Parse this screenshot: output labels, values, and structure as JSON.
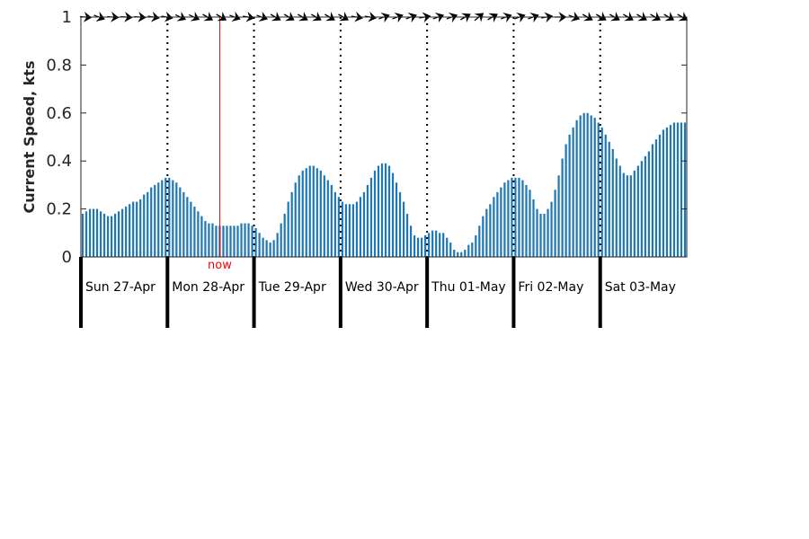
{
  "chart_data": {
    "type": "bar",
    "title": "",
    "xlabel": "",
    "ylabel": "Current Speed, kts",
    "ylim": [
      0,
      1
    ],
    "yticks": [
      0,
      0.2,
      0.4,
      0.6,
      0.8,
      1
    ],
    "ytick_labels": [
      "0",
      "0.2",
      "0.4",
      "0.6",
      "0.8",
      "1"
    ],
    "grid": false,
    "bar_color": "#1f77b4",
    "now_color": "#ff0000",
    "x_start": "2025-04-27T00:00",
    "x_end": "2025-05-04T00:00",
    "bar_interval_hours": 1,
    "days": [
      {
        "date": "2025-04-27",
        "label": "Sun 27-Apr"
      },
      {
        "date": "2025-04-28",
        "label": "Mon 28-Apr"
      },
      {
        "date": "2025-04-29",
        "label": "Tue 29-Apr"
      },
      {
        "date": "2025-04-30",
        "label": "Wed 30-Apr"
      },
      {
        "date": "2025-05-01",
        "label": "Thu 01-May"
      },
      {
        "date": "2025-05-02",
        "label": "Fri 02-May"
      },
      {
        "date": "2025-05-03",
        "label": "Sat 03-May"
      }
    ],
    "now": {
      "time": "2025-04-28T14:30",
      "label": "now"
    },
    "values": [
      0.18,
      0.19,
      0.2,
      0.2,
      0.2,
      0.19,
      0.18,
      0.17,
      0.17,
      0.18,
      0.19,
      0.2,
      0.21,
      0.22,
      0.23,
      0.23,
      0.24,
      0.26,
      0.27,
      0.29,
      0.3,
      0.31,
      0.32,
      0.33,
      0.33,
      0.32,
      0.31,
      0.29,
      0.27,
      0.25,
      0.23,
      0.21,
      0.19,
      0.17,
      0.15,
      0.14,
      0.14,
      0.13,
      0.13,
      0.13,
      0.13,
      0.13,
      0.13,
      0.13,
      0.14,
      0.14,
      0.14,
      0.13,
      0.12,
      0.1,
      0.08,
      0.07,
      0.06,
      0.07,
      0.1,
      0.14,
      0.18,
      0.23,
      0.27,
      0.31,
      0.34,
      0.36,
      0.37,
      0.38,
      0.38,
      0.37,
      0.36,
      0.34,
      0.32,
      0.3,
      0.27,
      0.25,
      0.23,
      0.22,
      0.22,
      0.22,
      0.23,
      0.25,
      0.27,
      0.3,
      0.33,
      0.36,
      0.38,
      0.39,
      0.39,
      0.38,
      0.35,
      0.31,
      0.27,
      0.23,
      0.18,
      0.13,
      0.09,
      0.08,
      0.08,
      0.09,
      0.1,
      0.11,
      0.11,
      0.1,
      0.1,
      0.08,
      0.06,
      0.03,
      0.02,
      0.02,
      0.03,
      0.05,
      0.06,
      0.09,
      0.13,
      0.17,
      0.2,
      0.22,
      0.25,
      0.27,
      0.29,
      0.31,
      0.32,
      0.33,
      0.33,
      0.33,
      0.32,
      0.3,
      0.28,
      0.24,
      0.2,
      0.18,
      0.18,
      0.2,
      0.23,
      0.28,
      0.34,
      0.41,
      0.47,
      0.51,
      0.54,
      0.57,
      0.59,
      0.6,
      0.6,
      0.59,
      0.58,
      0.56,
      0.54,
      0.51,
      0.48,
      0.45,
      0.41,
      0.38,
      0.35,
      0.34,
      0.34,
      0.36,
      0.38,
      0.4,
      0.42,
      0.44,
      0.47,
      0.49,
      0.51,
      0.53,
      0.54,
      0.55,
      0.56,
      0.56,
      0.56,
      0.56
    ],
    "direction_arrows": [
      95,
      110,
      95,
      95,
      95,
      100,
      100,
      115,
      115,
      120,
      120,
      110,
      100,
      110,
      120,
      120,
      120,
      120,
      120,
      120,
      100,
      100,
      70,
      70,
      70,
      80,
      70,
      70,
      60,
      50,
      60,
      70,
      70,
      70,
      80,
      90,
      110,
      120,
      120,
      120,
      120,
      120,
      120,
      120,
      120
    ]
  }
}
